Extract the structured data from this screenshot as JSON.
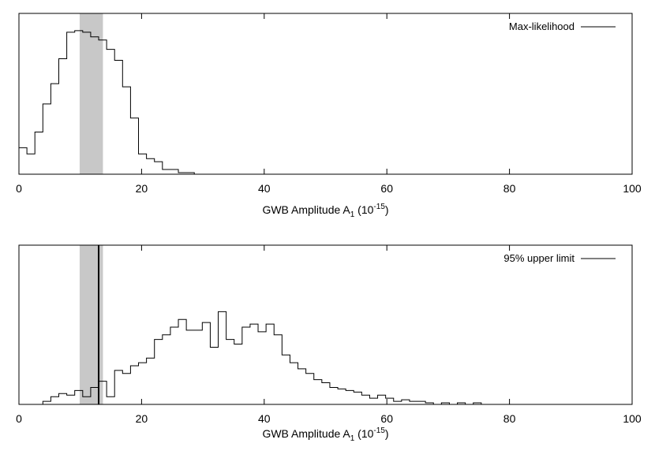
{
  "chart_data": [
    {
      "type": "histogram",
      "legend": {
        "label": "Max-likelihood",
        "position": "top-right"
      },
      "xlabel": {
        "base": "GWB Amplitude A",
        "sub": "1",
        "unit_open": " (10",
        "sup": "-15",
        "unit_close": ")"
      },
      "xlim": [
        0,
        100
      ],
      "xticks": [
        0,
        20,
        40,
        60,
        80,
        100
      ],
      "y_ticks_shown": false,
      "shaded_band": [
        9.9,
        13.7
      ],
      "bin_width": 1.3,
      "bin_start": 0,
      "counts": [
        0.17,
        0.13,
        0.27,
        0.45,
        0.58,
        0.74,
        0.91,
        0.92,
        0.91,
        0.88,
        0.86,
        0.8,
        0.73,
        0.56,
        0.36,
        0.13,
        0.1,
        0.08,
        0.03,
        0.03,
        0.01,
        0.01,
        0.0,
        0.0,
        0.0
      ],
      "ymax": 1.0
    },
    {
      "type": "histogram",
      "legend": {
        "label": "95% upper limit",
        "position": "top-right"
      },
      "xlabel": {
        "base": "GWB Amplitude A",
        "sub": "1",
        "unit_open": " (10",
        "sup": "-15",
        "unit_close": ")"
      },
      "xlim": [
        0,
        100
      ],
      "xticks": [
        0,
        20,
        40,
        60,
        80,
        100
      ],
      "y_ticks_shown": false,
      "shaded_band": [
        9.9,
        13.7
      ],
      "vertical_line": 13.0,
      "bin_width": 1.3,
      "bin_start": 0,
      "counts": [
        0,
        0,
        0,
        0.02,
        0.05,
        0.07,
        0.06,
        0.09,
        0.05,
        0.11,
        0.15,
        0.05,
        0.22,
        0.2,
        0.25,
        0.27,
        0.3,
        0.42,
        0.45,
        0.5,
        0.55,
        0.48,
        0.48,
        0.53,
        0.37,
        0.6,
        0.42,
        0.39,
        0.5,
        0.52,
        0.47,
        0.52,
        0.45,
        0.32,
        0.27,
        0.23,
        0.2,
        0.16,
        0.14,
        0.11,
        0.1,
        0.09,
        0.08,
        0.06,
        0.04,
        0.06,
        0.04,
        0.02,
        0.03,
        0.02,
        0.02,
        0.01,
        0.0,
        0.01,
        0.0,
        0.01,
        0.0,
        0.01,
        0.0,
        0.0,
        0.0,
        0.0,
        0.0,
        0.0
      ],
      "ymax": 1.0
    }
  ]
}
